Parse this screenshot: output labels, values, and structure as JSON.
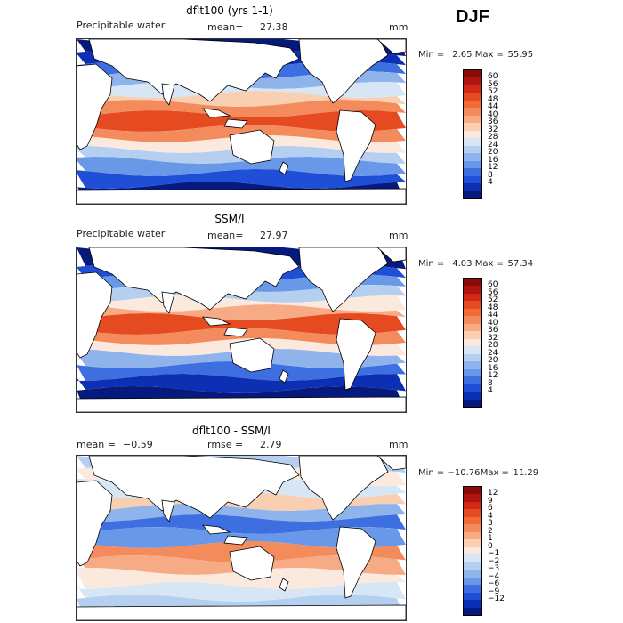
{
  "season": "DJF",
  "panels": [
    {
      "title": "dflt100 (yrs 1-1)",
      "left_label": "Precipitable water",
      "center_label": "mean=",
      "center_value": "27.38",
      "unit": "mm",
      "min_label": "Min =",
      "min_value": "2.65",
      "max_label": "Max =",
      "max_value": "55.95",
      "legend_ticks": [
        "60",
        "56",
        "52",
        "48",
        "44",
        "40",
        "36",
        "32",
        "28",
        "24",
        "20",
        "16",
        "12",
        "8",
        "4"
      ],
      "legend_colors": [
        "#8b0a0a",
        "#b0150f",
        "#cf2a17",
        "#e64a20",
        "#f26a36",
        "#f48b5c",
        "#f7ab85",
        "#f9cfb2",
        "#fbe9de",
        "#d7e6f5",
        "#b5cff0",
        "#8fb4ec",
        "#6a98e8",
        "#3d6fe0",
        "#1f4fd6",
        "#0c2fb4",
        "#061a7e"
      ],
      "map_kind": "model"
    },
    {
      "title": "SSM/I",
      "left_label": "Precipitable water",
      "center_label": "mean=",
      "center_value": "27.97",
      "unit": "mm",
      "min_label": "Min =",
      "min_value": "4.03",
      "max_label": "Max =",
      "max_value": "57.34",
      "legend_ticks": [
        "60",
        "56",
        "52",
        "48",
        "44",
        "40",
        "36",
        "32",
        "28",
        "24",
        "20",
        "16",
        "12",
        "8",
        "4"
      ],
      "legend_colors": [
        "#8b0a0a",
        "#b0150f",
        "#cf2a17",
        "#e64a20",
        "#f26a36",
        "#f48b5c",
        "#f7ab85",
        "#f9cfb2",
        "#fbe9de",
        "#d7e6f5",
        "#b5cff0",
        "#8fb4ec",
        "#6a98e8",
        "#3d6fe0",
        "#1f4fd6",
        "#0c2fb4",
        "#061a7e"
      ],
      "map_kind": "obs"
    },
    {
      "title": "dflt100 - SSM/I",
      "left_label": "mean =",
      "left_value": "−0.59",
      "center_label": "rmse =",
      "center_value": "2.79",
      "unit": "mm",
      "min_label": "Min =",
      "min_value": "−10.76",
      "max_label": "Max =",
      "max_value": "11.29",
      "legend_ticks": [
        "12",
        "9",
        "6",
        "4",
        "3",
        "2",
        "1",
        "0",
        "−1",
        "−2",
        "−3",
        "−4",
        "−6",
        "−9",
        "−12"
      ],
      "legend_colors": [
        "#8b0a0a",
        "#b0150f",
        "#cf2a17",
        "#e64a20",
        "#f26a36",
        "#f48b5c",
        "#f7ab85",
        "#f9cfb2",
        "#fbe9de",
        "#d7e6f5",
        "#b5cff0",
        "#8fb4ec",
        "#6a98e8",
        "#3d6fe0",
        "#1f4fd6",
        "#0c2fb4",
        "#061a7e"
      ],
      "map_kind": "diff"
    }
  ]
}
